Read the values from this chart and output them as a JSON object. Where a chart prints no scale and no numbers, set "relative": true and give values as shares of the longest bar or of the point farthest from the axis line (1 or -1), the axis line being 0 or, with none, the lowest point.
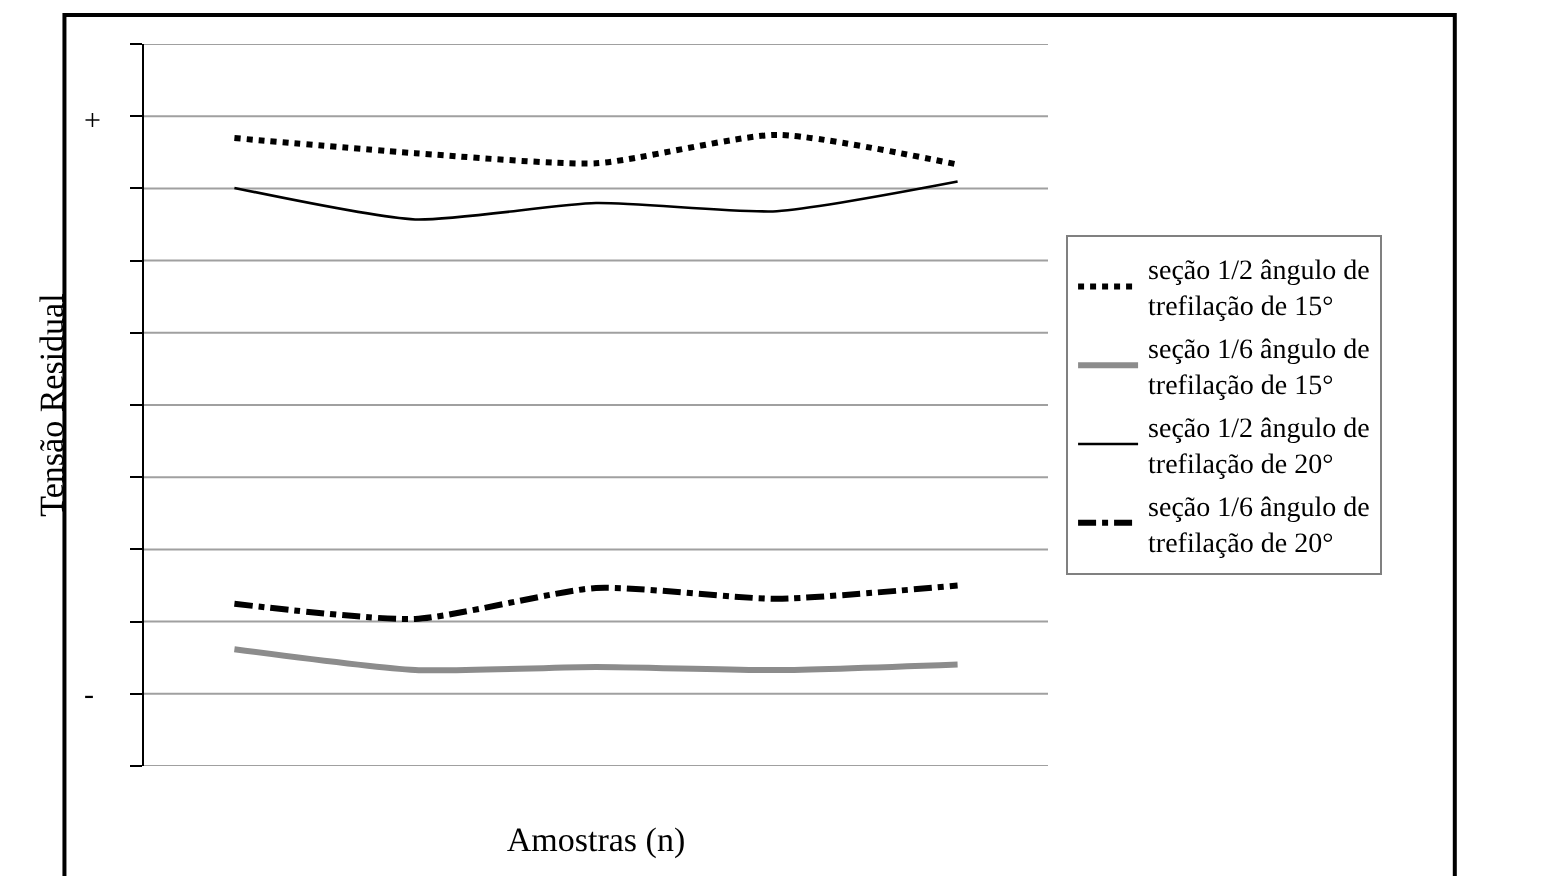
{
  "chart_data": {
    "type": "line",
    "relative": true,
    "ylabel": "Tensão Residual",
    "xlabel": "Amostras (n)",
    "categories": [
      null,
      null,
      null,
      null,
      null
    ],
    "annotations": [
      "+",
      "-"
    ],
    "grid": "y",
    "legend": "right",
    "marker": "none",
    "series": [
      {
        "name": "seção 1/2 ângulo de trefilação de 15°",
        "color": "#000000",
        "line_style": "dotted",
        "values": [
          0.995,
          0.971,
          0.955,
          1.0,
          0.953
        ]
      },
      {
        "name": "seção 1/6 ângulo de trefilação de 15°",
        "color": "#8c8c8c",
        "line_style": "solid",
        "values": [
          0.185,
          0.152,
          0.157,
          0.152,
          0.161
        ]
      },
      {
        "name": "seção 1/2 ângulo de trefilação de 20°",
        "color": "#000000",
        "line_style": "solid",
        "values": [
          0.916,
          0.866,
          0.892,
          0.879,
          0.926
        ]
      },
      {
        "name": "seção 1/6 ângulo de trefilação de 20°",
        "color": "#000000",
        "line_style": "dashdot",
        "values": [
          0.257,
          0.233,
          0.282,
          0.265,
          0.286
        ]
      }
    ]
  }
}
